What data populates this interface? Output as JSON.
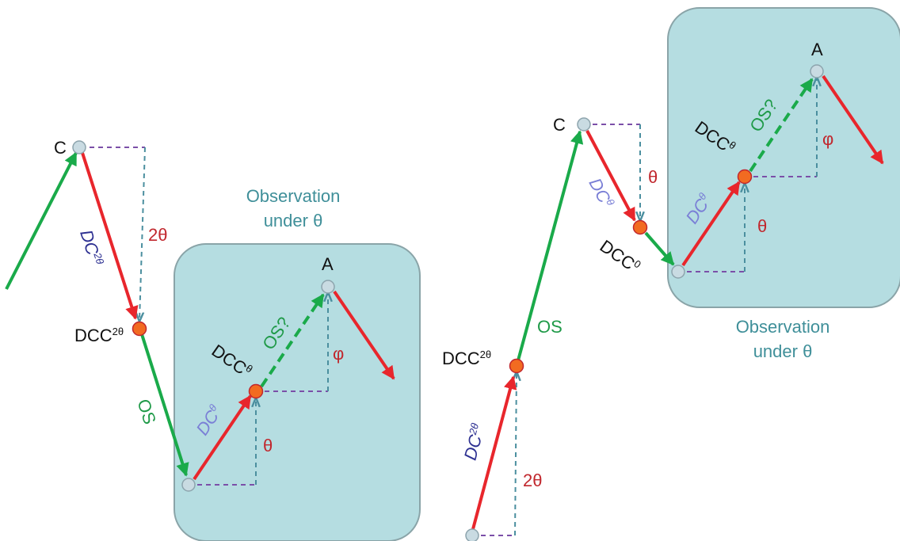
{
  "colors": {
    "green_arrow": "#1aaa4a",
    "red_arrow": "#e8262c",
    "purple_dashed": "#7b4fa8",
    "teal_dashed": "#4b8f9f",
    "box_fill": "#b5dde1",
    "box_stroke": "#8aa4a8",
    "node_gray": "#c9dbe2",
    "node_orange": "#f26b21",
    "label_navy": "#2e3192",
    "label_periwinkle": "#7a7fd6",
    "label_teal": "#3f8f99"
  },
  "left": {
    "box_title_line1": "Observation",
    "box_title_line2": "under θ",
    "node_c": "C",
    "node_a": "A",
    "dcc2_base": "DCC",
    "dcc2_sup": "2θ",
    "dcct_base": "DCC",
    "dcct_sup": "θ",
    "dc2_base": "DC",
    "dc2_sup": "2θ",
    "dct_base": "DC",
    "dct_sup": "θ",
    "os": "OS",
    "os_q": "OS?",
    "angle_2theta": "2θ",
    "angle_theta": "θ",
    "angle_phi": "φ"
  },
  "right": {
    "box_title_line1": "Observation",
    "box_title_line2": "under θ",
    "node_c": "C",
    "node_a": "A",
    "dcc2_base": "DCC",
    "dcc2_sup": "2θ",
    "dcc0_base": "DCC",
    "dcc0_sup": "0",
    "dcct_base": "DCC",
    "dcct_sup": "θ",
    "dc2_base": "DC",
    "dc2_sup": "2θ",
    "dct1_base": "DC",
    "dct1_sup": "θ",
    "dct2_base": "DC",
    "dct2_sup": "θ",
    "os": "OS",
    "os_q": "OS?",
    "angle_2theta": "2θ",
    "angle_theta_upper": "θ",
    "angle_theta_box": "θ",
    "angle_phi": "φ"
  }
}
